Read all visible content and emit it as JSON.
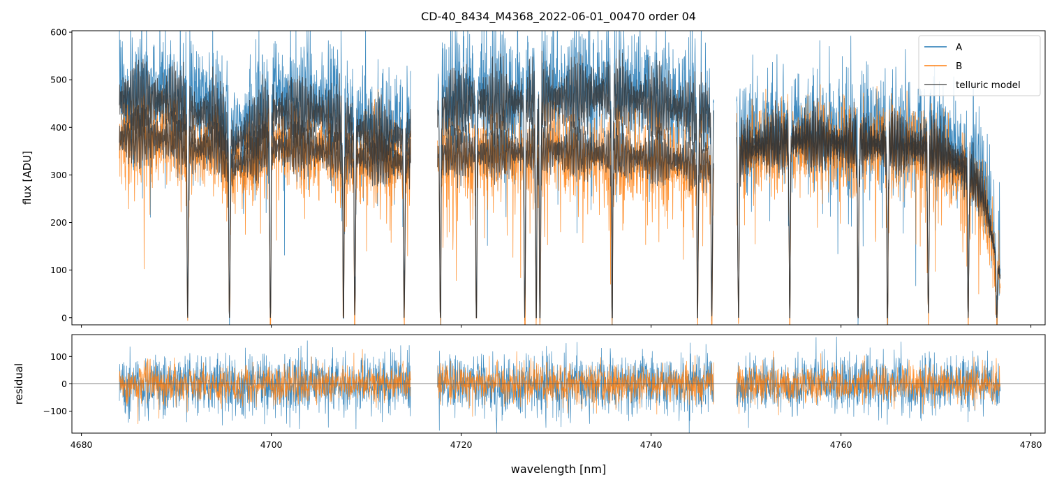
{
  "chart_data": [
    {
      "panel": "flux",
      "type": "line",
      "title": "CD-40_8434_M4368_2022-06-01_00470  order 04",
      "xlabel": "",
      "ylabel": "flux [ADU]",
      "xlim": [
        4679,
        4781.5
      ],
      "ylim": [
        -15,
        603
      ],
      "x_ticks": [
        4680,
        4700,
        4720,
        4740,
        4760,
        4780
      ],
      "x_ticklabels_shown": false,
      "y_ticks": [
        0,
        100,
        200,
        300,
        400,
        500,
        600
      ],
      "y_ticklabels": [
        "0",
        "100",
        "200",
        "300",
        "400",
        "500",
        "600"
      ],
      "grid": false,
      "legend_position": "top-right",
      "segments": [
        [
          4684.0,
          4714.7
        ],
        [
          4717.5,
          4746.6
        ],
        [
          4749.0,
          4776.8
        ]
      ],
      "series": [
        {
          "name": "A",
          "color": "#1f77b4",
          "continuum_x": [
            4684,
            4690,
            4692,
            4694,
            4696,
            4700,
            4705,
            4710,
            4714.7,
            4717.5,
            4720,
            4725,
            4730,
            4735,
            4740,
            4745,
            4746.6,
            4749,
            4752,
            4756,
            4760,
            4765,
            4770,
            4773,
            4775,
            4776.8
          ],
          "continuum_y": [
            510,
            505,
            470,
            480,
            400,
            480,
            480,
            430,
            420,
            480,
            500,
            500,
            510,
            520,
            500,
            480,
            470,
            400,
            410,
            420,
            410,
            410,
            400,
            360,
            290,
            95
          ]
        },
        {
          "name": "B",
          "color": "#ff7f0e",
          "continuum_x": [
            4684,
            4690,
            4692,
            4694,
            4696,
            4700,
            4705,
            4710,
            4714.7,
            4717.5,
            4720,
            4725,
            4730,
            4735,
            4740,
            4745,
            4746.6,
            4749,
            4752,
            4756,
            4760,
            4765,
            4770,
            4773,
            4775,
            4776.8
          ],
          "continuum_y": [
            420,
            415,
            390,
            405,
            350,
            400,
            390,
            370,
            360,
            380,
            380,
            385,
            390,
            380,
            370,
            360,
            350,
            370,
            400,
            410,
            400,
            400,
            380,
            340,
            280,
            90
          ]
        },
        {
          "name": "telluric model",
          "color": "#333333",
          "absorption_lines_x": [
            4691.2,
            4695.6,
            4699.9,
            4707.6,
            4708.8,
            4714.0,
            4717.8,
            4721.6,
            4726.7,
            4727.9,
            4728.3,
            4735.9,
            4744.9,
            4746.4,
            4749.2,
            4754.6,
            4761.8,
            4764.9,
            4769.2,
            4773.4,
            4776.4
          ]
        }
      ]
    },
    {
      "panel": "residual",
      "type": "line",
      "xlabel": "wavelength [nm]",
      "ylabel": "residual",
      "xlim": [
        4679,
        4781.5
      ],
      "ylim": [
        -180,
        180
      ],
      "x_ticks": [
        4680,
        4700,
        4720,
        4740,
        4760,
        4780
      ],
      "x_ticklabels": [
        "4680",
        "4700",
        "4720",
        "4740",
        "4760",
        "4780"
      ],
      "y_ticks": [
        -100,
        0,
        100
      ],
      "y_ticklabels": [
        "−100",
        "0",
        "100"
      ],
      "zero_line": true,
      "series": [
        {
          "name": "A",
          "color": "#1f77b4",
          "typical_amplitude": 110
        },
        {
          "name": "B",
          "color": "#ff7f0e",
          "typical_amplitude": 70
        }
      ]
    }
  ]
}
